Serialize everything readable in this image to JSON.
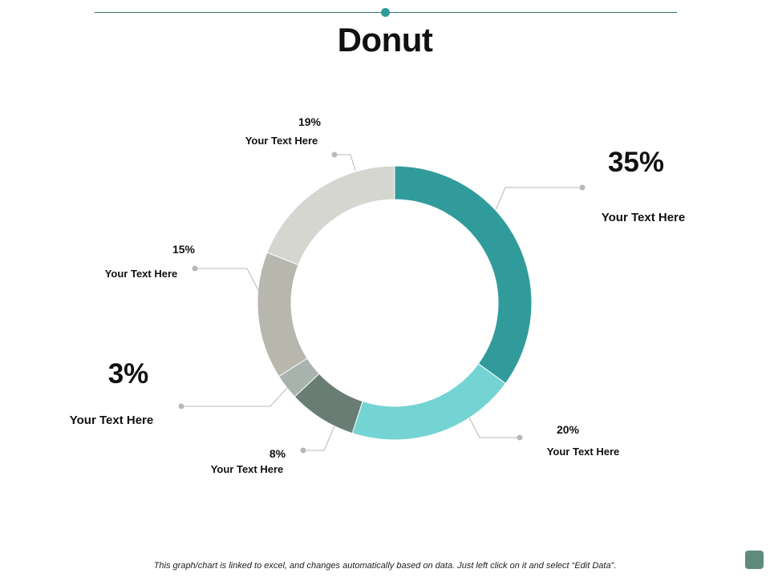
{
  "page": {
    "title": "Donut",
    "footer": "This graph/chart is linked to excel, and changes automatically based on data. Just left click on it and select “Edit Data”."
  },
  "chart_data": {
    "type": "pie",
    "variant": "donut",
    "title": "Donut",
    "slices": [
      {
        "value": 35,
        "label": "35%",
        "text": "Your Text Here",
        "color": "#319b9b"
      },
      {
        "value": 20,
        "label": "20%",
        "text": "Your Text Here",
        "color": "#74d3d3"
      },
      {
        "value": 8,
        "label": "8%",
        "text": "Your Text Here",
        "color": "#6a7d74"
      },
      {
        "value": 3,
        "label": "3%",
        "text": "Your Text Here",
        "color": "#a9b3ad"
      },
      {
        "value": 15,
        "label": "15%",
        "text": "Your Text Here",
        "color": "#b7b7ae"
      },
      {
        "value": 19,
        "label": "19%",
        "text": "Your Text Here",
        "color": "#d6d6d1"
      }
    ]
  },
  "colors": {
    "accent": "#2e9a9a",
    "rule": "#3b6f6c",
    "leader": "#b8b8b8"
  }
}
